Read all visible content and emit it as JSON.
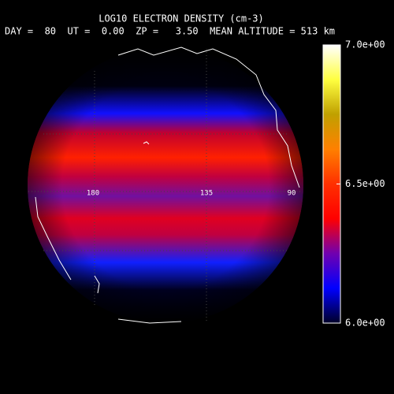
{
  "title": "LOG10 ELECTRON DENSITY (cm-3)",
  "subtitle": "DAY =  80  UT =  0.00  ZP =   3.50  MEAN ALTITUDE = 513 km",
  "colorbar": {
    "range": [
      6,
      7
    ],
    "ticks": [
      {
        "value": 6,
        "label": "6.0e+00"
      },
      {
        "value": 6.5,
        "label": "6.5e+00"
      },
      {
        "value": 7,
        "label": "7.0e+00"
      }
    ],
    "colors": [
      "#000028",
      "#0000ff",
      "#7000b0",
      "#ff0000",
      "#ff3000",
      "#ff8000",
      "#c0a000",
      "#ffff40",
      "#ffffff"
    ]
  },
  "map": {
    "longitude_labels": [
      "180",
      "135",
      "90"
    ]
  }
}
